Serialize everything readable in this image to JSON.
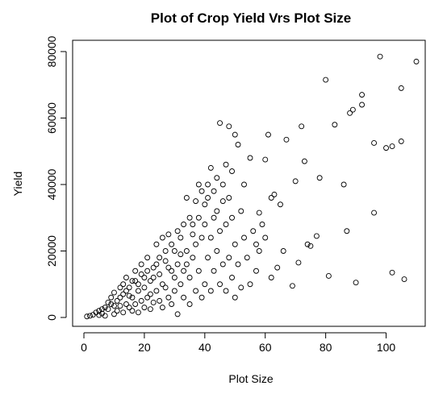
{
  "chart_data": {
    "type": "scatter",
    "title": "Plot of Crop Yield Vrs Plot Size",
    "xlabel": "Plot Size",
    "ylabel": "Yield",
    "xlim": [
      0,
      110
    ],
    "ylim": [
      0,
      80000
    ],
    "xticks": [
      0,
      20,
      40,
      60,
      80,
      100
    ],
    "yticks": [
      0,
      20000,
      40000,
      60000,
      80000
    ],
    "xtick_labels": [
      "0",
      "20",
      "40",
      "60",
      "80",
      "100"
    ],
    "ytick_labels": [
      "0",
      "20000",
      "40000",
      "60000",
      "80000"
    ],
    "grid": false,
    "marker": "open-circle",
    "series": [
      {
        "points": [
          [
            1,
            300
          ],
          [
            2,
            500
          ],
          [
            3,
            800
          ],
          [
            4,
            1500
          ],
          [
            5,
            2000
          ],
          [
            6,
            1200
          ],
          [
            7,
            3000
          ],
          [
            8,
            2500
          ],
          [
            9,
            4000
          ],
          [
            10,
            1000
          ],
          [
            11,
            5000
          ],
          [
            12,
            3500
          ],
          [
            13,
            7000
          ],
          [
            14,
            4000
          ],
          [
            15,
            9000
          ],
          [
            16,
            6000
          ],
          [
            17,
            11000
          ],
          [
            18,
            8000
          ],
          [
            19,
            13000
          ],
          [
            20,
            9000
          ],
          [
            21,
            14000
          ],
          [
            22,
            7000
          ],
          [
            23,
            12000
          ],
          [
            24,
            16000
          ],
          [
            25,
            18000
          ],
          [
            26,
            10000
          ],
          [
            27,
            20000
          ],
          [
            28,
            15000
          ],
          [
            29,
            22000
          ],
          [
            30,
            12000
          ],
          [
            31,
            26000
          ],
          [
            32,
            19000
          ],
          [
            33,
            28000
          ],
          [
            34,
            16000
          ],
          [
            35,
            30000
          ],
          [
            36,
            25000
          ],
          [
            37,
            35000
          ],
          [
            38,
            30000
          ],
          [
            39,
            38000
          ],
          [
            40,
            34000
          ],
          [
            41,
            40000
          ],
          [
            42,
            45000
          ],
          [
            43,
            30000
          ],
          [
            44,
            42000
          ],
          [
            45,
            58500
          ],
          [
            46,
            35000
          ],
          [
            47,
            46000
          ],
          [
            48,
            57500
          ],
          [
            49,
            44000
          ],
          [
            50,
            55000
          ],
          [
            51,
            52000
          ],
          [
            52,
            32000
          ],
          [
            53,
            40000
          ],
          [
            55,
            48000
          ],
          [
            57,
            22000
          ],
          [
            58,
            31500
          ],
          [
            59,
            28000
          ],
          [
            60,
            47500
          ],
          [
            61,
            55000
          ],
          [
            62,
            36000
          ],
          [
            63,
            37000
          ],
          [
            65,
            34000
          ],
          [
            67,
            53500
          ],
          [
            69,
            9500
          ],
          [
            70,
            41000
          ],
          [
            72,
            57500
          ],
          [
            73,
            47000
          ],
          [
            74,
            22000
          ],
          [
            75,
            21500
          ],
          [
            77,
            24500
          ],
          [
            78,
            42000
          ],
          [
            80,
            71500
          ],
          [
            81,
            12500
          ],
          [
            83,
            58000
          ],
          [
            86,
            40000
          ],
          [
            87,
            26000
          ],
          [
            88,
            61500
          ],
          [
            89,
            62500
          ],
          [
            90,
            10500
          ],
          [
            92,
            64000
          ],
          [
            92,
            67000
          ],
          [
            96,
            52500
          ],
          [
            96,
            31500
          ],
          [
            98,
            78500
          ],
          [
            100,
            51000
          ],
          [
            102,
            13500
          ],
          [
            102,
            51500
          ],
          [
            105,
            69000
          ],
          [
            105,
            53000
          ],
          [
            106,
            11500
          ],
          [
            110,
            77000
          ],
          [
            5,
            700
          ],
          [
            6,
            2500
          ],
          [
            7,
            500
          ],
          [
            8,
            4500
          ],
          [
            9,
            6000
          ],
          [
            10,
            3500
          ],
          [
            10,
            7500
          ],
          [
            11,
            2000
          ],
          [
            12,
            6000
          ],
          [
            12,
            9000
          ],
          [
            13,
            1500
          ],
          [
            13,
            10000
          ],
          [
            14,
            8000
          ],
          [
            14,
            12000
          ],
          [
            15,
            3000
          ],
          [
            15,
            6500
          ],
          [
            16,
            2000
          ],
          [
            16,
            11000
          ],
          [
            17,
            4000
          ],
          [
            17,
            14000
          ],
          [
            18,
            1500
          ],
          [
            18,
            10000
          ],
          [
            19,
            5000
          ],
          [
            19,
            16000
          ],
          [
            20,
            3000
          ],
          [
            20,
            12000
          ],
          [
            21,
            6000
          ],
          [
            21,
            18000
          ],
          [
            22,
            2500
          ],
          [
            22,
            11000
          ],
          [
            23,
            4500
          ],
          [
            23,
            15000
          ],
          [
            24,
            8000
          ],
          [
            24,
            22000
          ],
          [
            25,
            5000
          ],
          [
            25,
            13000
          ],
          [
            26,
            3000
          ],
          [
            26,
            24000
          ],
          [
            27,
            9000
          ],
          [
            27,
            17000
          ],
          [
            28,
            6000
          ],
          [
            28,
            25000
          ],
          [
            29,
            4000
          ],
          [
            29,
            14000
          ],
          [
            30,
            8000
          ],
          [
            30,
            20000
          ],
          [
            31,
            1000
          ],
          [
            31,
            16000
          ],
          [
            32,
            10000
          ],
          [
            32,
            24000
          ],
          [
            33,
            6000
          ],
          [
            33,
            14000
          ],
          [
            34,
            20000
          ],
          [
            34,
            36000
          ],
          [
            35,
            4000
          ],
          [
            35,
            12000
          ],
          [
            36,
            18000
          ],
          [
            36,
            28000
          ],
          [
            37,
            8000
          ],
          [
            37,
            22000
          ],
          [
            38,
            14000
          ],
          [
            38,
            40000
          ],
          [
            39,
            6000
          ],
          [
            39,
            24000
          ],
          [
            40,
            10000
          ],
          [
            40,
            28000
          ],
          [
            41,
            18000
          ],
          [
            41,
            36000
          ],
          [
            42,
            8000
          ],
          [
            42,
            24000
          ],
          [
            43,
            14000
          ],
          [
            43,
            38000
          ],
          [
            44,
            20000
          ],
          [
            44,
            32000
          ],
          [
            45,
            10000
          ],
          [
            45,
            26000
          ],
          [
            46,
            16000
          ],
          [
            46,
            40000
          ],
          [
            47,
            8000
          ],
          [
            47,
            28000
          ],
          [
            48,
            18000
          ],
          [
            48,
            36000
          ],
          [
            49,
            12000
          ],
          [
            49,
            30000
          ],
          [
            50,
            6000
          ],
          [
            50,
            22000
          ],
          [
            51,
            16000
          ],
          [
            52,
            9000
          ],
          [
            53,
            24000
          ],
          [
            54,
            18000
          ],
          [
            55,
            10000
          ],
          [
            56,
            26000
          ],
          [
            57,
            14000
          ],
          [
            58,
            20000
          ],
          [
            60,
            24000
          ],
          [
            62,
            12000
          ],
          [
            64,
            15000
          ],
          [
            66,
            20000
          ],
          [
            71,
            16500
          ]
        ]
      }
    ]
  }
}
